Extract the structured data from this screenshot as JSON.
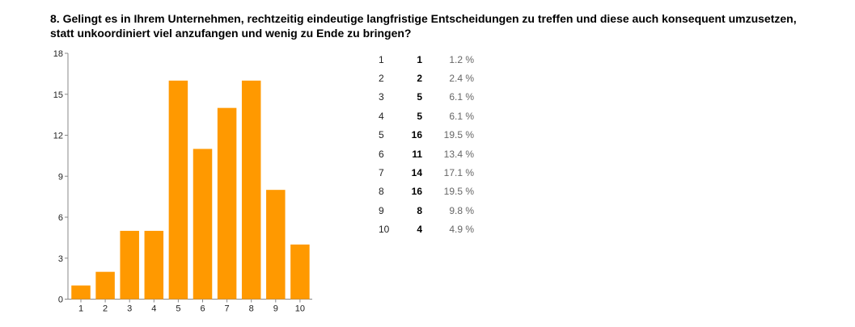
{
  "question": {
    "line1": "8. Gelingt es in Ihrem Unternehmen, rechtzeitig eindeutige langfristige Entscheidungen zu treffen und diese auch konsequent umzusetzen,",
    "line2": "statt unkoordiniert viel anzufangen und wenig zu Ende zu bringen?"
  },
  "colors": {
    "bar": "#ff9900",
    "axis": "#888888"
  },
  "chart_data": {
    "type": "bar",
    "title": "8. Gelingt es in Ihrem Unternehmen, rechtzeitig eindeutige langfristige Entscheidungen zu treffen und diese auch konsequent umzusetzen, statt unkoordiniert viel anzufangen und wenig zu Ende zu bringen?",
    "categories": [
      "1",
      "2",
      "3",
      "4",
      "5",
      "6",
      "7",
      "8",
      "9",
      "10"
    ],
    "values": [
      1,
      2,
      5,
      5,
      16,
      11,
      14,
      16,
      8,
      4
    ],
    "ylim": [
      0,
      18
    ],
    "yticks": [
      "0",
      "3",
      "6",
      "9",
      "12",
      "15",
      "18"
    ],
    "xlabel": "",
    "ylabel": "",
    "grid": false,
    "legend": "none"
  },
  "stats": [
    {
      "option": "1",
      "count": "1",
      "percent": "1.2 %"
    },
    {
      "option": "2",
      "count": "2",
      "percent": "2.4 %"
    },
    {
      "option": "3",
      "count": "5",
      "percent": "6.1 %"
    },
    {
      "option": "4",
      "count": "5",
      "percent": "6.1 %"
    },
    {
      "option": "5",
      "count": "16",
      "percent": "19.5 %"
    },
    {
      "option": "6",
      "count": "11",
      "percent": "13.4 %"
    },
    {
      "option": "7",
      "count": "14",
      "percent": "17.1 %"
    },
    {
      "option": "8",
      "count": "16",
      "percent": "19.5 %"
    },
    {
      "option": "9",
      "count": "8",
      "percent": "9.8 %"
    },
    {
      "option": "10",
      "count": "4",
      "percent": "4.9 %"
    }
  ]
}
